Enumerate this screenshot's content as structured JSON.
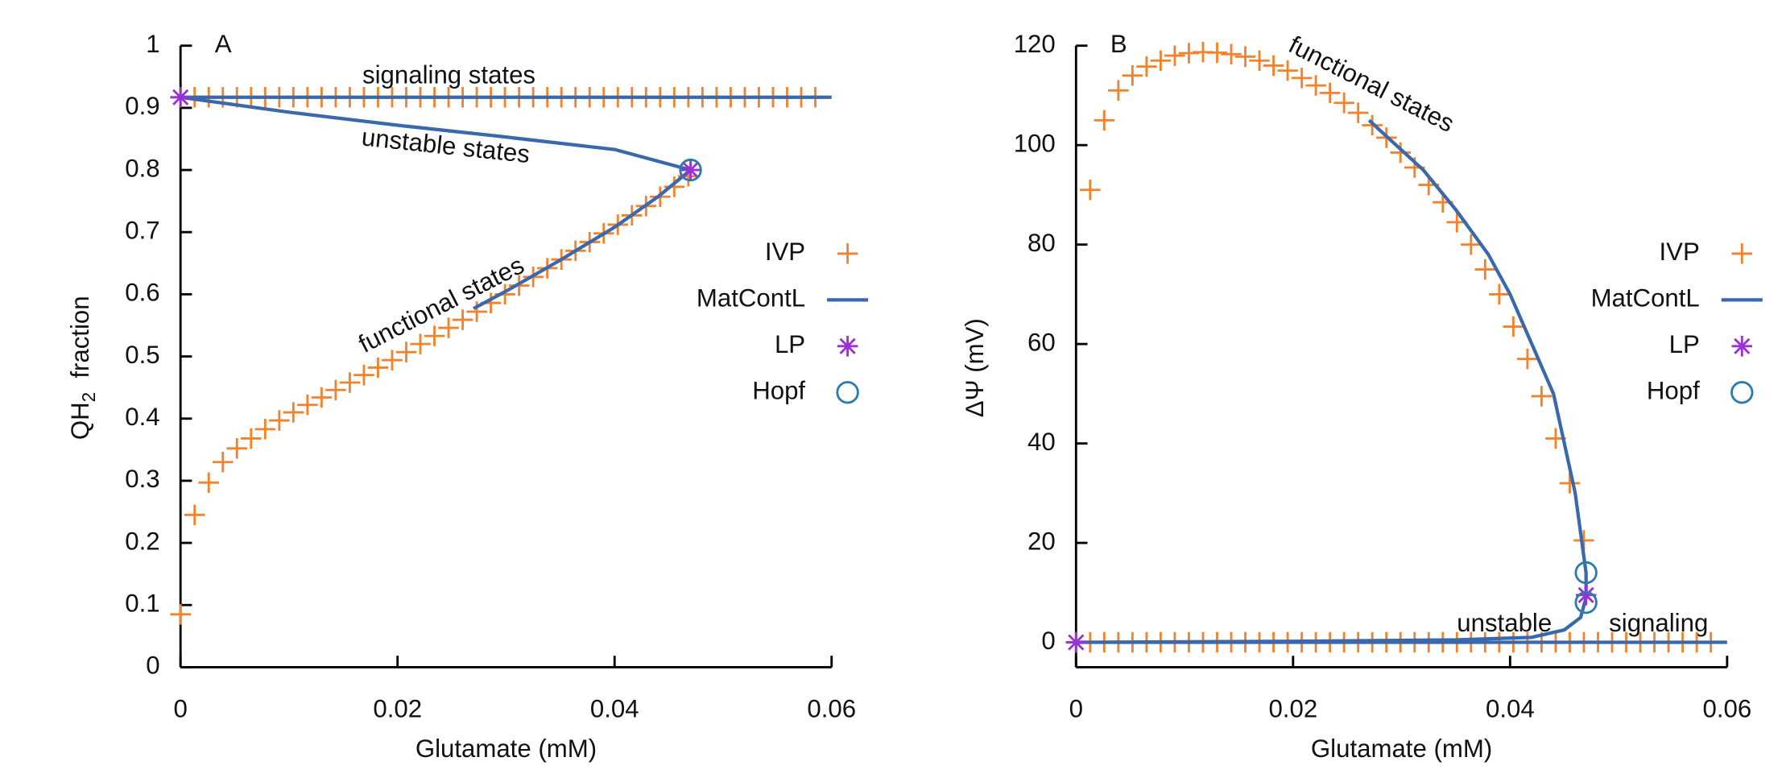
{
  "chart_data": [
    {
      "type": "line",
      "panel_label": "A",
      "xlabel": "Glutamate (mM)",
      "ylabel": [
        "QH",
        "2",
        "fraction"
      ],
      "annotations": [
        "signaling states",
        "unstable states",
        "functional states"
      ],
      "xlim": [
        0,
        0.06
      ],
      "ylim": [
        0,
        1
      ],
      "xticks": [
        0,
        0.02,
        0.04,
        0.06
      ],
      "yticks": [
        0,
        0.1,
        0.2,
        0.3,
        0.4,
        0.5,
        0.6,
        0.7,
        0.8,
        0.9,
        1
      ],
      "legend": "right",
      "series": [
        {
          "name": "IVP",
          "color": "#f5822a",
          "marker": "plus",
          "x": [
            0,
            0.0013,
            0.0026,
            0.0039,
            0.0052,
            0.0065,
            0.0078,
            0.0091,
            0.0104,
            0.0117,
            0.013,
            0.0143,
            0.0156,
            0.0169,
            0.0182,
            0.0195,
            0.0208,
            0.0221,
            0.0234,
            0.0247,
            0.026,
            0.0273,
            0.0286,
            0.0299,
            0.0312,
            0.0325,
            0.0338,
            0.0351,
            0.0364,
            0.0377,
            0.039,
            0.0403,
            0.0416,
            0.0429,
            0.0442,
            0.0455,
            0.0468,
            0,
            0.0013,
            0.0026,
            0.0039,
            0.0052,
            0.0065,
            0.0078,
            0.0091,
            0.0104,
            0.0117,
            0.013,
            0.0143,
            0.0156,
            0.0169,
            0.0182,
            0.0195,
            0.0208,
            0.0221,
            0.0234,
            0.0247,
            0.026,
            0.0273,
            0.0286,
            0.0299,
            0.0312,
            0.0325,
            0.0338,
            0.0351,
            0.0364,
            0.0377,
            0.039,
            0.0403,
            0.0416,
            0.0429,
            0.0442,
            0.0455,
            0.0468,
            0.0481,
            0.0494,
            0.0507,
            0.052,
            0.0533,
            0.0546,
            0.0559,
            0.0572,
            0.0585
          ],
          "values": [
            0.085,
            0.245,
            0.297,
            0.33,
            0.352,
            0.368,
            0.383,
            0.397,
            0.41,
            0.422,
            0.434,
            0.446,
            0.458,
            0.47,
            0.482,
            0.494,
            0.507,
            0.52,
            0.533,
            0.546,
            0.559,
            0.572,
            0.586,
            0.6,
            0.614,
            0.628,
            0.642,
            0.656,
            0.67,
            0.684,
            0.698,
            0.712,
            0.727,
            0.742,
            0.757,
            0.773,
            0.79,
            0.917,
            0.917,
            0.917,
            0.917,
            0.917,
            0.917,
            0.917,
            0.917,
            0.917,
            0.917,
            0.917,
            0.917,
            0.917,
            0.917,
            0.917,
            0.917,
            0.917,
            0.917,
            0.917,
            0.917,
            0.917,
            0.917,
            0.917,
            0.917,
            0.917,
            0.917,
            0.917,
            0.917,
            0.917,
            0.917,
            0.917,
            0.917,
            0.917,
            0.917,
            0.917,
            0.917,
            0.917,
            0.917,
            0.917,
            0.917,
            0.917,
            0.917,
            0.917,
            0.917,
            0.917,
            0.917
          ]
        },
        {
          "name": "MatContL",
          "color": "#3a68ac",
          "marker": "line",
          "x": [
            0.06,
            0.03,
            0,
            0.01,
            0.02,
            0.03,
            0.04,
            0.047,
            0.044,
            0.04,
            0.035,
            0.03,
            0.027
          ],
          "values": [
            0.917,
            0.917,
            0.917,
            0.893,
            0.872,
            0.853,
            0.833,
            0.8,
            0.757,
            0.708,
            0.655,
            0.605,
            0.577
          ]
        },
        {
          "name": "LP",
          "color": "#9b30d8",
          "marker": "asterisk",
          "x": [
            0,
            0.047
          ],
          "values": [
            0.917,
            0.8
          ]
        },
        {
          "name": "Hopf",
          "color": "#2b7bb0",
          "marker": "circle",
          "x": [
            0.047
          ],
          "values": [
            0.8
          ]
        }
      ]
    },
    {
      "type": "line",
      "panel_label": "B",
      "xlabel": "Glutamate (mM)",
      "ylabel": [
        "ΔΨ (mV)"
      ],
      "annotations": [
        "functional states",
        "unstable",
        "signaling"
      ],
      "xlim": [
        0,
        0.06
      ],
      "ylim": [
        -5,
        120
      ],
      "xticks": [
        0,
        0.02,
        0.04,
        0.06
      ],
      "yticks": [
        0,
        20,
        40,
        60,
        80,
        100,
        120
      ],
      "legend": "right",
      "series": [
        {
          "name": "IVP",
          "color": "#f5822a",
          "marker": "plus",
          "x": [
            0.0013,
            0.0026,
            0.0039,
            0.0052,
            0.0065,
            0.0078,
            0.0091,
            0.0104,
            0.0117,
            0.013,
            0.0143,
            0.0156,
            0.0169,
            0.0182,
            0.0195,
            0.0208,
            0.0221,
            0.0234,
            0.0247,
            0.026,
            0.0273,
            0.0286,
            0.0299,
            0.0312,
            0.0325,
            0.0338,
            0.0351,
            0.0364,
            0.0377,
            0.039,
            0.0403,
            0.0416,
            0.0429,
            0.0442,
            0.0455,
            0.0468,
            0,
            0.0013,
            0.0026,
            0.0039,
            0.0052,
            0.0065,
            0.0078,
            0.0091,
            0.0104,
            0.0117,
            0.013,
            0.0143,
            0.0156,
            0.0169,
            0.0182,
            0.0195,
            0.0208,
            0.0221,
            0.0234,
            0.0247,
            0.026,
            0.0273,
            0.0286,
            0.0299,
            0.0312,
            0.0325,
            0.0338,
            0.0351,
            0.0364,
            0.0377,
            0.039,
            0.0403,
            0.0416,
            0.0429,
            0.0442,
            0.0455,
            0.0468,
            0.0481,
            0.0494,
            0.0507,
            0.052,
            0.0533,
            0.0546,
            0.0559,
            0.0572,
            0.0585
          ],
          "values": [
            91,
            105,
            111,
            114,
            115.8,
            117,
            118,
            118.5,
            118.7,
            118.6,
            118.3,
            117.8,
            117,
            116,
            115,
            113.5,
            112,
            110.5,
            108.5,
            106.5,
            104,
            101.5,
            98.5,
            95.5,
            92,
            88.5,
            84.5,
            80,
            75,
            70,
            63.5,
            57,
            49.5,
            41,
            32,
            20.5,
            0,
            0,
            0,
            0,
            0,
            0,
            0,
            0,
            0,
            0,
            0,
            0,
            0,
            0,
            0,
            0,
            0,
            0,
            0,
            0,
            0,
            0,
            0,
            0,
            0,
            0,
            0,
            0,
            0,
            0,
            0,
            0,
            0,
            0,
            0,
            0,
            0,
            0,
            0,
            0,
            0,
            0,
            0,
            0,
            0,
            0
          ]
        },
        {
          "name": "MatContL",
          "color": "#3a68ac",
          "marker": "line",
          "x": [
            0.06,
            0,
            0.02,
            0.035,
            0.042,
            0.045,
            0.0465,
            0.047,
            0.047,
            0.0465,
            0.046,
            0.045,
            0.044,
            0.042,
            0.04,
            0.038,
            0.035,
            0.032,
            0.029,
            0.027
          ],
          "values": [
            0,
            0,
            0.2,
            0.5,
            1,
            2.5,
            5,
            9,
            14,
            22,
            30,
            40,
            50,
            60,
            70,
            78,
            87,
            95,
            101,
            105
          ]
        },
        {
          "name": "LP",
          "color": "#9b30d8",
          "marker": "asterisk",
          "x": [
            0,
            0.047
          ],
          "values": [
            0,
            9.5
          ]
        },
        {
          "name": "Hopf",
          "color": "#2b7bb0",
          "marker": "circle",
          "x": [
            0.047,
            0.047
          ],
          "values": [
            14,
            8
          ]
        }
      ]
    }
  ]
}
